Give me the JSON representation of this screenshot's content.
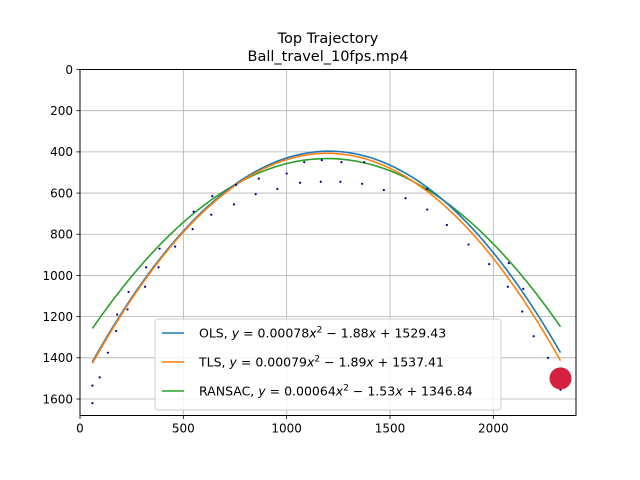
{
  "chart_data": {
    "type": "scatter",
    "title": [
      "Top Trajectory",
      "Ball_travel_10fps.mp4"
    ],
    "xlim": [
      0,
      2400
    ],
    "ylim": [
      1680,
      0
    ],
    "y_inverted": true,
    "grid": true,
    "legend_location": "lower-center",
    "xticks": [
      "0",
      "500",
      "1000",
      "1500",
      "2000"
    ],
    "yticks": [
      "0",
      "200",
      "400",
      "600",
      "800",
      "1000",
      "1200",
      "1400",
      "1600"
    ],
    "points_color": "#00008b",
    "points": [
      [
        60,
        1620
      ],
      [
        60,
        1535
      ],
      [
        95,
        1495
      ],
      [
        135,
        1375
      ],
      [
        175,
        1270
      ],
      [
        180,
        1190
      ],
      [
        230,
        1165
      ],
      [
        235,
        1080
      ],
      [
        315,
        1055
      ],
      [
        320,
        960
      ],
      [
        380,
        960
      ],
      [
        385,
        870
      ],
      [
        460,
        860
      ],
      [
        545,
        775
      ],
      [
        550,
        690
      ],
      [
        635,
        705
      ],
      [
        640,
        615
      ],
      [
        745,
        655
      ],
      [
        755,
        560
      ],
      [
        850,
        605
      ],
      [
        865,
        530
      ],
      [
        955,
        580
      ],
      [
        1000,
        505
      ],
      [
        1065,
        550
      ],
      [
        1085,
        450
      ],
      [
        1165,
        545
      ],
      [
        1170,
        440
      ],
      [
        1260,
        545
      ],
      [
        1265,
        450
      ],
      [
        1365,
        555
      ],
      [
        1375,
        450
      ],
      [
        1470,
        585
      ],
      [
        1575,
        625
      ],
      [
        1680,
        680
      ],
      [
        1680,
        580
      ],
      [
        1775,
        755
      ],
      [
        1880,
        850
      ],
      [
        1980,
        945
      ],
      [
        2070,
        1055
      ],
      [
        2075,
        940
      ],
      [
        2140,
        1175
      ],
      [
        2145,
        1065
      ],
      [
        2195,
        1295
      ],
      [
        2265,
        1400
      ],
      [
        2325,
        1555
      ],
      [
        2325,
        1495
      ]
    ],
    "series": [
      {
        "name": "OLS, $y = 0.00078x^2 - 1.88x + 1529.43$",
        "color": "#1f77b4",
        "a": 0.00078,
        "b": -1.88,
        "c": 1529.43,
        "x_range": [
          60,
          2325
        ]
      },
      {
        "name": "TLS, $y = 0.00079x^2 - 1.89x + 1537.41$",
        "color": "#ff7f0e",
        "a": 0.00079,
        "b": -1.89,
        "c": 1537.41,
        "x_range": [
          60,
          2325
        ]
      },
      {
        "name": "RANSAC, $y = 0.00064x^2 - 1.53x + 1346.84$",
        "color": "#2ca02c",
        "a": 0.00064,
        "b": -1.53,
        "c": 1346.84,
        "x_range": [
          60,
          2325
        ]
      }
    ],
    "legend": [
      {
        "method": "OLS",
        "a": "0.00078",
        "b": "1.88",
        "c": "1529.43",
        "color": "#1f77b4"
      },
      {
        "method": "TLS",
        "a": "0.00079",
        "b": "1.89",
        "c": "1537.41",
        "color": "#ff7f0e"
      },
      {
        "method": "RANSAC",
        "a": "0.00064",
        "b": "1.53",
        "c": "1346.84",
        "color": "#2ca02c"
      }
    ],
    "marker": {
      "x": 2325,
      "y": 1500,
      "color": "#d62040"
    }
  }
}
